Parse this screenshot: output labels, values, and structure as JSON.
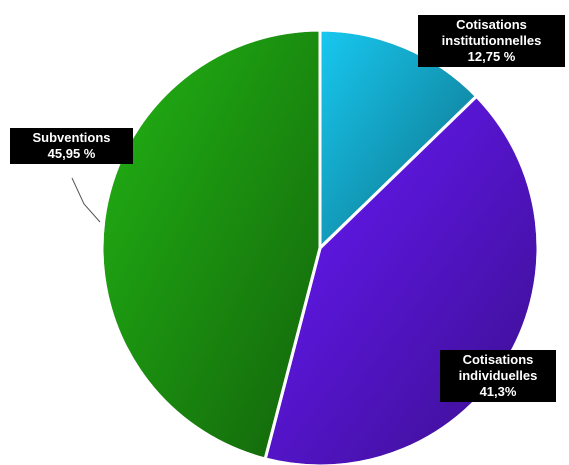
{
  "chart_data": {
    "type": "pie",
    "categories": [
      "Cotisations institutionnelles",
      "Cotisations individuelles",
      "Subventions"
    ],
    "values": [
      12.75,
      41.3,
      45.95
    ],
    "value_labels": [
      "12,75 %",
      "41,3%",
      "45,95 %"
    ],
    "colors": [
      "#18c8f0",
      "#6a1aff",
      "#22b514"
    ]
  }
}
